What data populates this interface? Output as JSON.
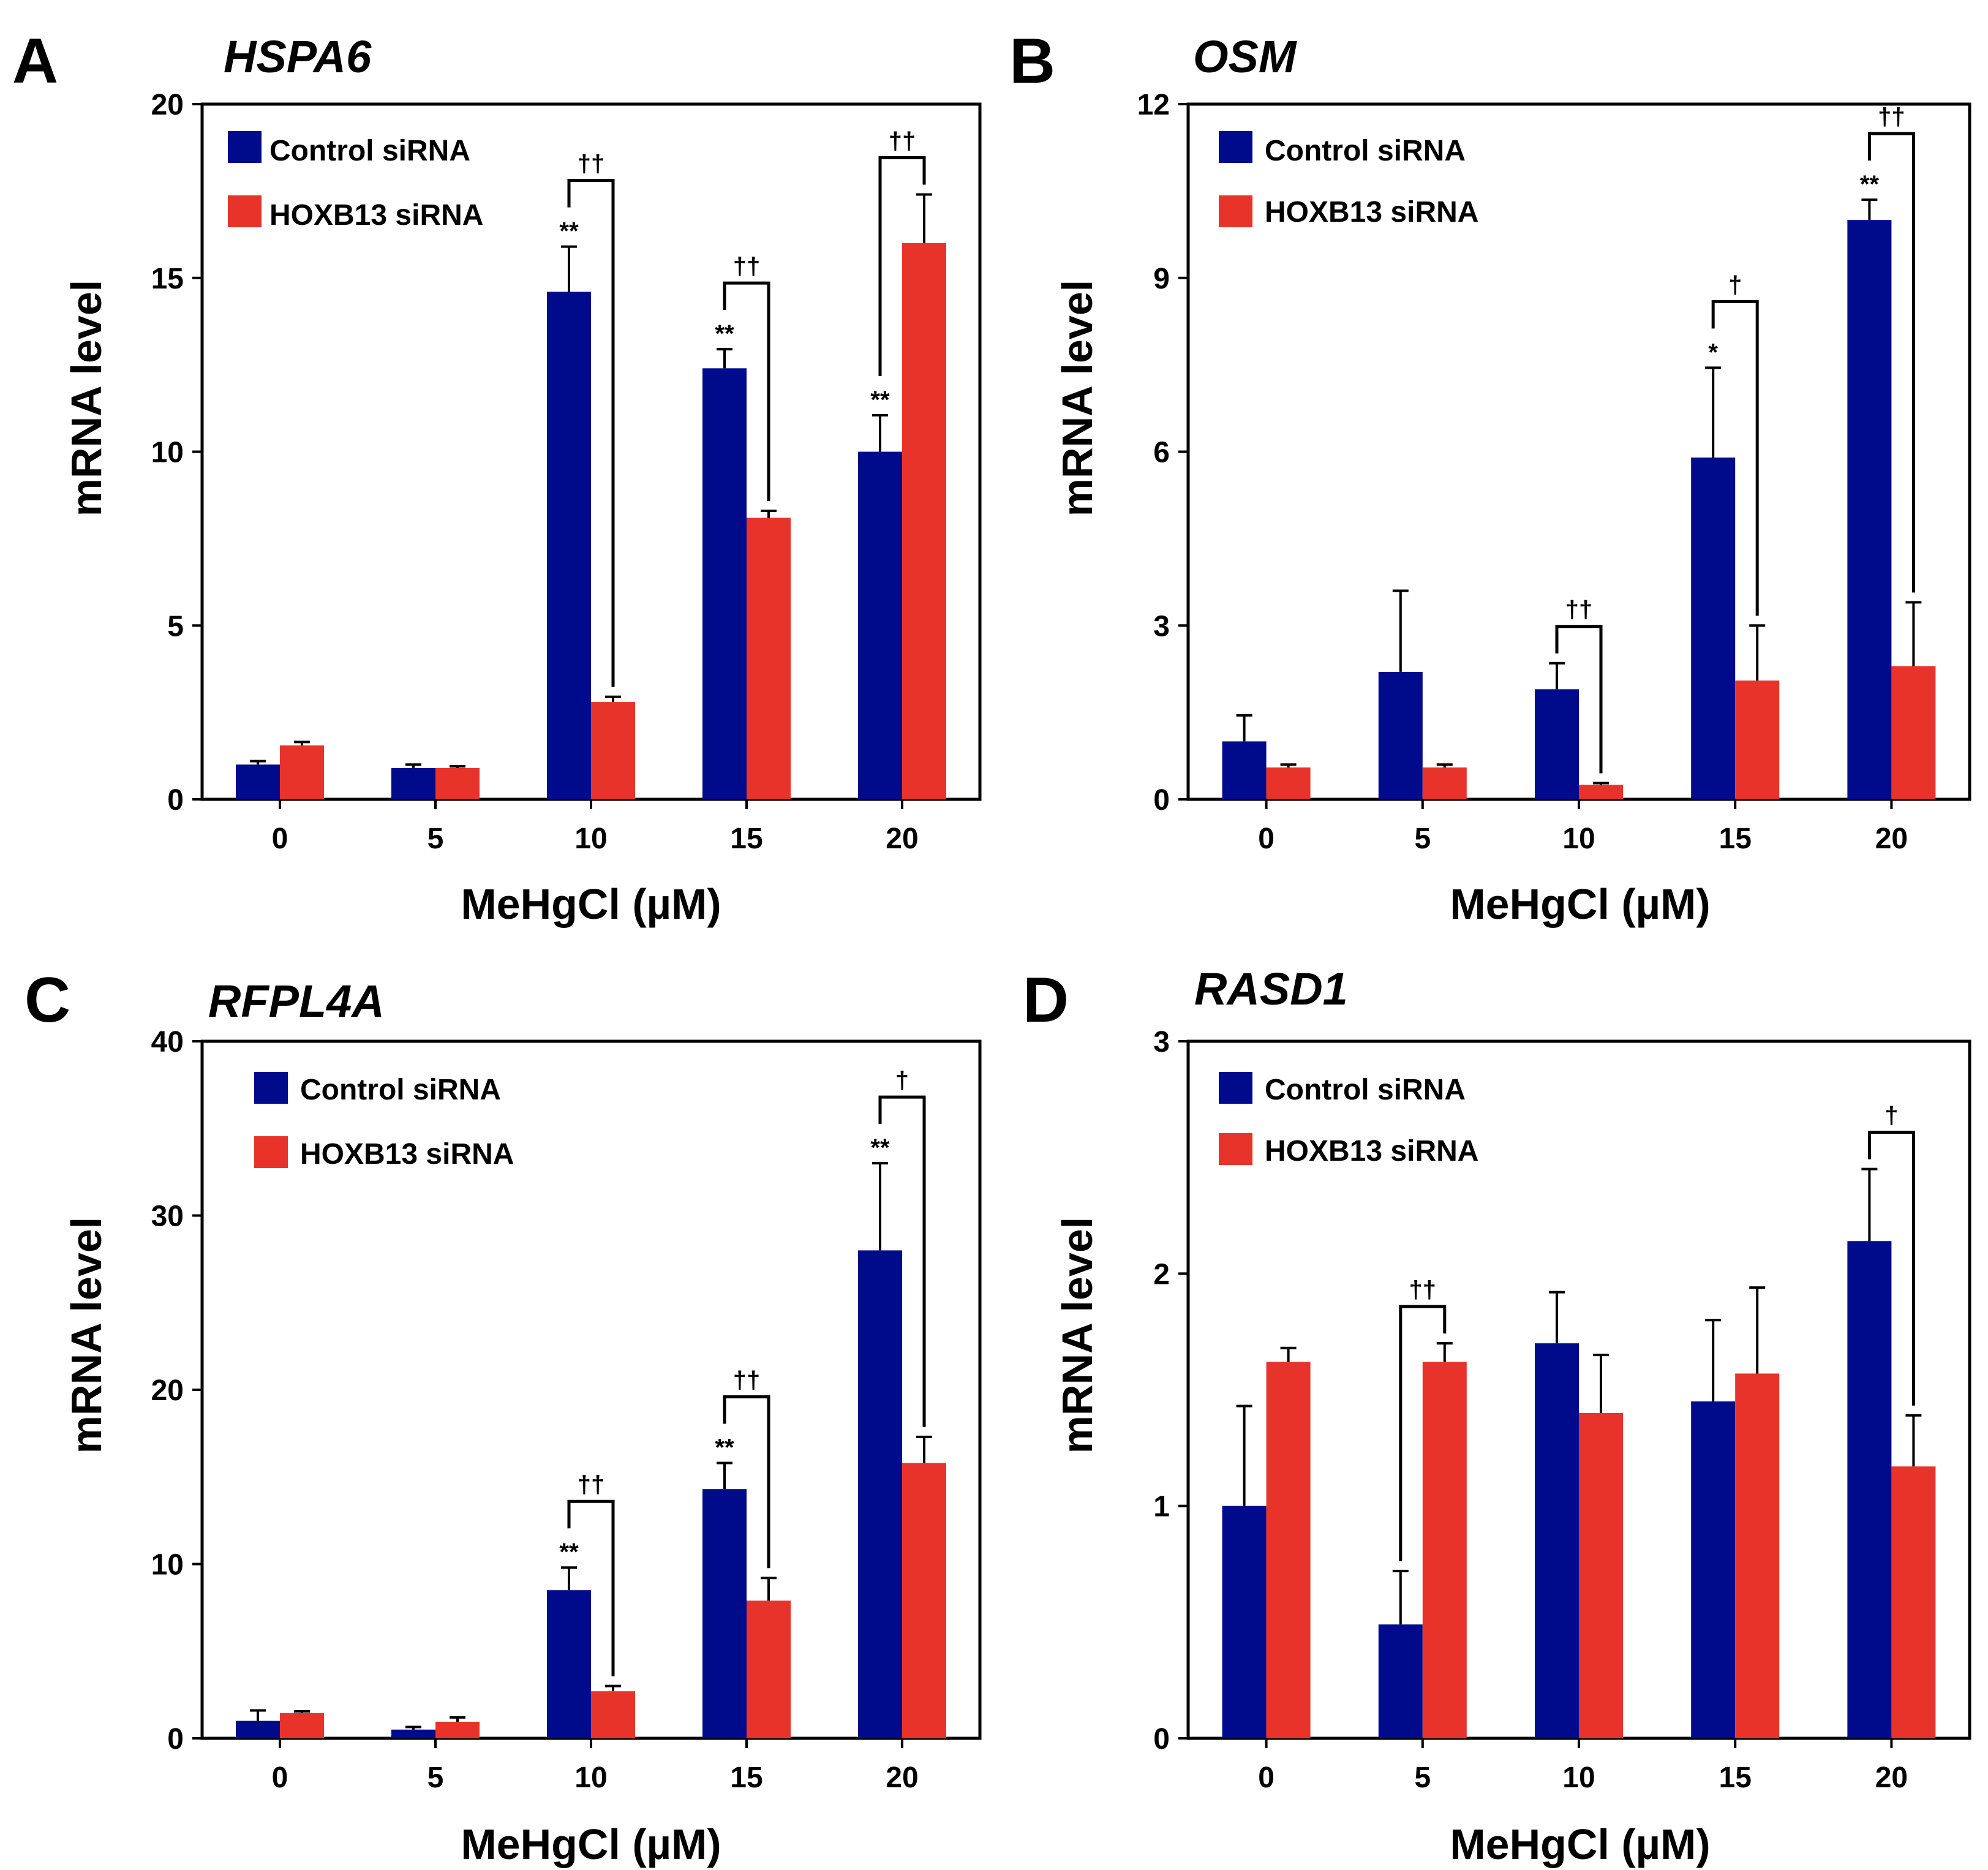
{
  "colors": {
    "control": "#000b8c",
    "hoxb13": "#e8332b"
  },
  "chart_data": [
    {
      "type": "bar",
      "panel": "A",
      "title": "HSPA6",
      "xlabel": "MeHgCl (µM)",
      "ylabel": "mRNA level",
      "ylim": [
        0,
        20
      ],
      "yticks": [
        0,
        5,
        10,
        15,
        20
      ],
      "categories": [
        "0",
        "5",
        "10",
        "15",
        "20"
      ],
      "legend": [
        "Control siRNA",
        "HOXB13 siRNA"
      ],
      "series": [
        {
          "name": "Control siRNA",
          "values": [
            1.0,
            0.9,
            14.6,
            12.4,
            10.0
          ],
          "errors": [
            0.1,
            0.1,
            1.3,
            0.55,
            1.05
          ]
        },
        {
          "name": "HOXB13 siRNA",
          "values": [
            1.55,
            0.9,
            2.8,
            8.1,
            16.0
          ],
          "errors": [
            0.1,
            0.05,
            0.15,
            0.2,
            1.4
          ]
        }
      ],
      "stars": [
        "",
        "",
        "**",
        "**",
        "**"
      ],
      "daggers": [
        "",
        "",
        "††",
        "††",
        "††"
      ]
    },
    {
      "type": "bar",
      "panel": "B",
      "title": "OSM",
      "xlabel": "MeHgCl (µM)",
      "ylabel": "mRNA level",
      "ylim": [
        0,
        12
      ],
      "yticks": [
        0,
        3,
        6,
        9,
        12
      ],
      "categories": [
        "0",
        "5",
        "10",
        "15",
        "20"
      ],
      "legend": [
        "Control siRNA",
        "HOXB13 siRNA"
      ],
      "series": [
        {
          "name": "Control siRNA",
          "values": [
            1.0,
            2.2,
            1.9,
            5.9,
            10.0
          ],
          "errors": [
            0.45,
            1.4,
            0.45,
            1.55,
            0.35
          ]
        },
        {
          "name": "HOXB13 siRNA",
          "values": [
            0.55,
            0.55,
            0.25,
            2.05,
            2.3
          ],
          "errors": [
            0.05,
            0.05,
            0.03,
            0.95,
            1.1
          ]
        }
      ],
      "stars": [
        "",
        "",
        "",
        "*",
        "**"
      ],
      "daggers": [
        "",
        "",
        "††",
        "†",
        "††"
      ]
    },
    {
      "type": "bar",
      "panel": "C",
      "title": "RFPL4A",
      "xlabel": "MeHgCl (µM)",
      "ylabel": "mRNA level",
      "ylim": [
        0,
        40
      ],
      "yticks": [
        0,
        10,
        20,
        30,
        40
      ],
      "categories": [
        "0",
        "5",
        "10",
        "15",
        "20"
      ],
      "legend": [
        "Control siRNA",
        "HOXB13 siRNA"
      ],
      "series": [
        {
          "name": "Control siRNA",
          "values": [
            1.0,
            0.5,
            8.5,
            14.3,
            28.0
          ],
          "errors": [
            0.6,
            0.15,
            1.3,
            1.5,
            5.0
          ]
        },
        {
          "name": "HOXB13 siRNA",
          "values": [
            1.45,
            0.95,
            2.7,
            7.9,
            15.8
          ],
          "errors": [
            0.1,
            0.25,
            0.3,
            1.3,
            1.5
          ]
        }
      ],
      "stars": [
        "",
        "",
        "**",
        "**",
        "**"
      ],
      "daggers": [
        "",
        "",
        "††",
        "††",
        "†"
      ]
    },
    {
      "type": "bar",
      "panel": "D",
      "title": "RASD1",
      "xlabel": "MeHgCl (µM)",
      "ylabel": "mRNA level",
      "ylim": [
        0,
        3
      ],
      "yticks": [
        0,
        1,
        2,
        3
      ],
      "categories": [
        "0",
        "5",
        "10",
        "15",
        "20"
      ],
      "legend": [
        "Control siRNA",
        "HOXB13 siRNA"
      ],
      "series": [
        {
          "name": "Control siRNA",
          "values": [
            1.0,
            0.49,
            1.7,
            1.45,
            2.14
          ],
          "errors": [
            0.43,
            0.23,
            0.22,
            0.35,
            0.31
          ]
        },
        {
          "name": "HOXB13 siRNA",
          "values": [
            1.62,
            1.62,
            1.4,
            1.57,
            1.17
          ],
          "errors": [
            0.06,
            0.08,
            0.25,
            0.37,
            0.22
          ]
        }
      ],
      "stars": [
        "",
        "",
        "",
        "",
        ""
      ],
      "daggers": [
        "",
        "††",
        "",
        "",
        "†"
      ]
    }
  ]
}
